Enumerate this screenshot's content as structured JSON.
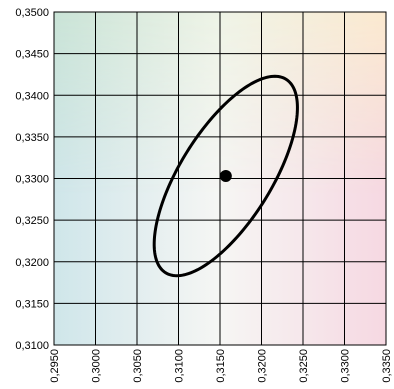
{
  "chart_data": {
    "type": "scatter",
    "title": "",
    "xlabel": "",
    "ylabel": "",
    "xlim": [
      0.295,
      0.335
    ],
    "ylim": [
      0.31,
      0.35
    ],
    "x_tick_labels": [
      "0,2950",
      "0,3000",
      "0,3050",
      "0,3100",
      "0,3150",
      "0,3200",
      "0,3250",
      "0,3300",
      "0,3350"
    ],
    "y_tick_labels": [
      "0,3100",
      "0,3150",
      "0,3200",
      "0,3250",
      "0,3300",
      "0,3350",
      "0,3400",
      "0,3450",
      "0,3500"
    ],
    "grid": true,
    "background": "chromaticity color gradient",
    "series": [
      {
        "type": "point",
        "x": [
          0.3157
        ],
        "y": [
          0.3303
        ]
      },
      {
        "type": "ellipse",
        "center": [
          0.3157,
          0.3303
        ],
        "semi_major": 0.0137,
        "semi_minor": 0.0055,
        "angle_deg": 58
      }
    ],
    "colors": {
      "grid": "#000000",
      "ellipse": "#000000",
      "point": "#000000"
    }
  }
}
